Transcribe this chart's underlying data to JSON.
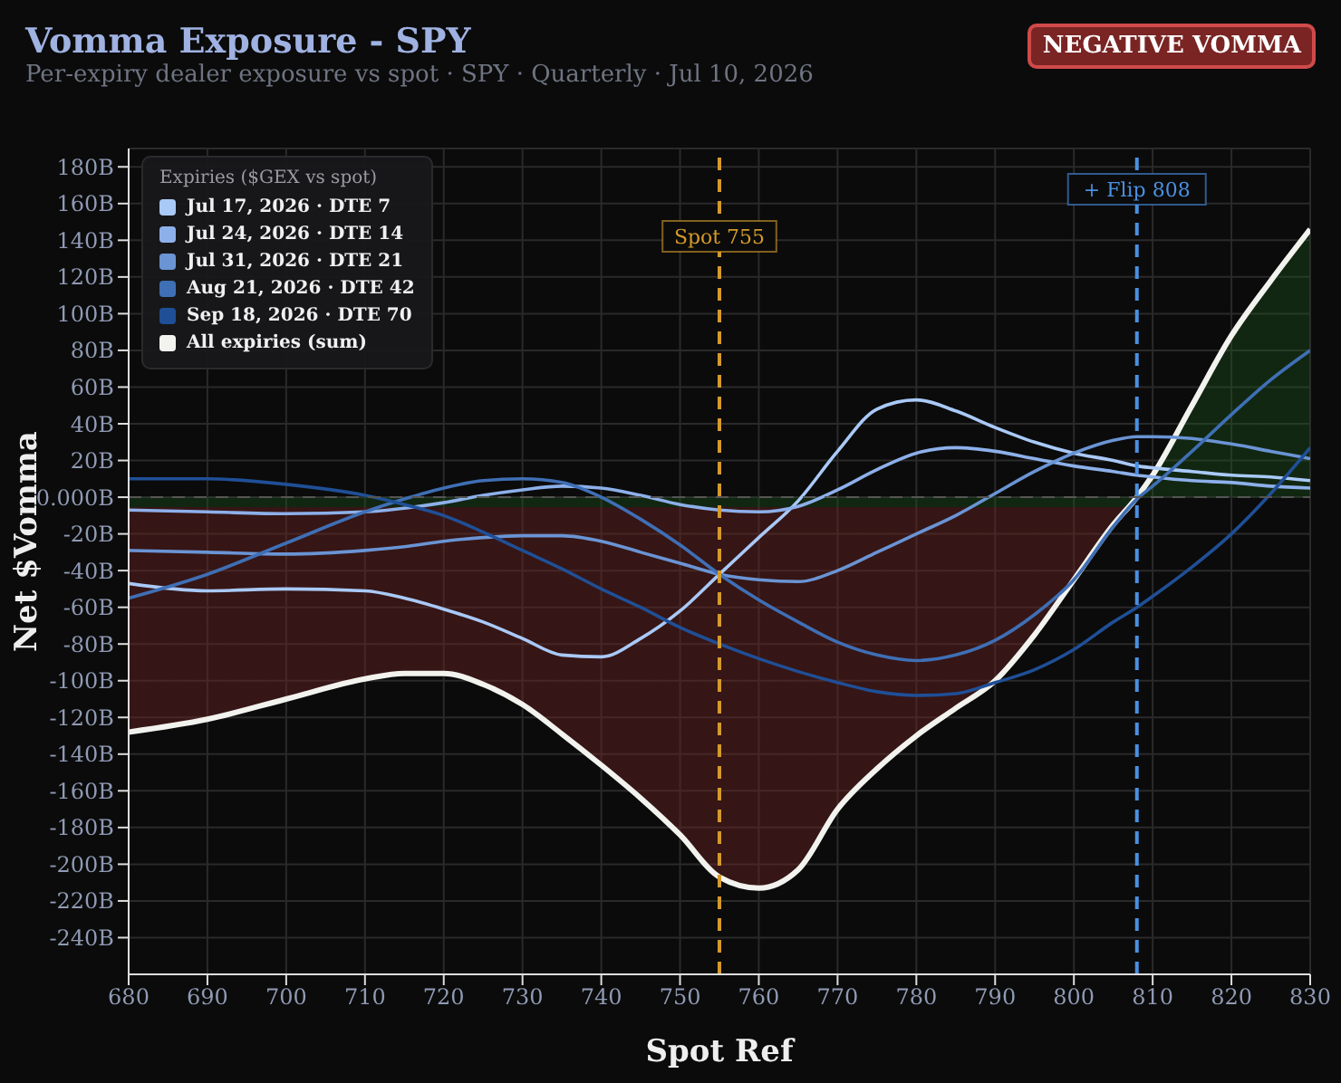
{
  "chart_data": {
    "type": "line",
    "title": "Vomma Exposure - SPY",
    "subtitle": "Per-expiry dealer exposure vs spot · SPY · Quarterly · Jul 10, 2026",
    "xlabel": "Spot Ref",
    "ylabel": "Net $Vomma",
    "legend_title": "Expiries ($GEX vs spot)",
    "annotations": [
      "NEGATIVE VOMMA"
    ],
    "x": [
      680,
      690,
      700,
      710,
      715,
      720,
      725,
      730,
      735,
      740,
      745,
      750,
      755,
      760,
      765,
      770,
      775,
      780,
      785,
      790,
      795,
      800,
      805,
      808,
      810,
      815,
      820,
      825,
      830
    ],
    "series": [
      {
        "name": "Jul 17, 2026 · DTE 7",
        "color": "#a9c9f7",
        "values": [
          -47,
          -51,
          -50,
          -51,
          -55,
          -61,
          -68,
          -77,
          -86,
          -87,
          -77,
          -62,
          -42,
          -22,
          -2,
          25,
          48,
          53,
          47,
          38,
          30,
          24,
          20,
          17,
          16,
          14,
          12,
          11,
          9
        ]
      },
      {
        "name": "Jul 24, 2026 · DTE 14",
        "color": "#8db0ea",
        "values": [
          -7,
          -8,
          -9,
          -8,
          -6,
          -3,
          1,
          4,
          6,
          5,
          1,
          -4,
          -7,
          -8,
          -5,
          4,
          15,
          24,
          27,
          25,
          21,
          17,
          14,
          12,
          11,
          9,
          8,
          6,
          5
        ]
      },
      {
        "name": "Jul 31, 2026 · DTE 21",
        "color": "#6a94d4",
        "values": [
          -29,
          -30,
          -31,
          -29,
          -27,
          -24,
          -22,
          -21,
          -21,
          -24,
          -30,
          -36,
          -42,
          -45,
          -46,
          -40,
          -30,
          -20,
          -10,
          2,
          14,
          24,
          31,
          33,
          33,
          32,
          29,
          25,
          21
        ]
      },
      {
        "name": "Aug 21, 2026 · DTE 42",
        "color": "#3f6fb5",
        "values": [
          -55,
          -42,
          -25,
          -8,
          -1,
          5,
          9,
          10,
          8,
          0,
          -12,
          -26,
          -42,
          -56,
          -68,
          -79,
          -86,
          -89,
          -86,
          -78,
          -64,
          -45,
          -16,
          -1,
          6,
          25,
          45,
          64,
          80
        ]
      },
      {
        "name": "Sep 18, 2026 · DTE 70",
        "color": "#1f4f96",
        "values": [
          10,
          10,
          7,
          1,
          -4,
          -10,
          -19,
          -29,
          -39,
          -50,
          -60,
          -71,
          -80,
          -88,
          -95,
          -101,
          -106,
          -108,
          -107,
          -101,
          -94,
          -83,
          -68,
          -60,
          -54,
          -38,
          -20,
          2,
          27
        ]
      },
      {
        "name": "All expiries (sum)",
        "type": "area",
        "color": "#f2f2ee",
        "values": [
          -128,
          -121,
          -110,
          -99,
          -96,
          -96,
          -102,
          -113,
          -129,
          -146,
          -164,
          -184,
          -207,
          -213,
          -203,
          -170,
          -148,
          -130,
          -115,
          -100,
          -75,
          -45,
          -15,
          0,
          12,
          50,
          88,
          118,
          146
        ]
      }
    ],
    "xlim": [
      680,
      830
    ],
    "xticks": [
      680,
      690,
      700,
      710,
      720,
      730,
      740,
      750,
      760,
      770,
      780,
      790,
      800,
      810,
      820,
      830
    ],
    "ylim": [
      -260,
      190
    ],
    "yticks": [
      {
        "value": 180,
        "label": "180B"
      },
      {
        "value": 160,
        "label": "160B"
      },
      {
        "value": 140,
        "label": "140B"
      },
      {
        "value": 120,
        "label": "120B"
      },
      {
        "value": 100,
        "label": "100B"
      },
      {
        "value": 80,
        "label": "80B"
      },
      {
        "value": 60,
        "label": "60B"
      },
      {
        "value": 40,
        "label": "40B"
      },
      {
        "value": 20,
        "label": "20B"
      },
      {
        "value": 0,
        "label": "0.000B"
      },
      {
        "value": -20,
        "label": "-20B"
      },
      {
        "value": -40,
        "label": "-40B"
      },
      {
        "value": -60,
        "label": "-60B"
      },
      {
        "value": -80,
        "label": "-80B"
      },
      {
        "value": -100,
        "label": "-100B"
      },
      {
        "value": -120,
        "label": "-120B"
      },
      {
        "value": -140,
        "label": "-140B"
      },
      {
        "value": -160,
        "label": "-160B"
      },
      {
        "value": -180,
        "label": "-180B"
      },
      {
        "value": -200,
        "label": "-200B"
      },
      {
        "value": -220,
        "label": "-220B"
      },
      {
        "value": -240,
        "label": "-240B"
      }
    ],
    "ref_lines": [
      {
        "axis": "y",
        "value": 0,
        "label": null,
        "color": "#555555",
        "line_style": "dashed"
      },
      {
        "axis": "x",
        "value": 755,
        "label": "Spot 755",
        "color": "#d49a2a",
        "line_style": "dashed"
      },
      {
        "axis": "x",
        "value": 808,
        "label": "+ Flip 808",
        "color": "#4a90e2",
        "line_style": "dashed"
      }
    ],
    "grid": true,
    "legend": "top left",
    "marker": "none",
    "line_style": "solid"
  }
}
